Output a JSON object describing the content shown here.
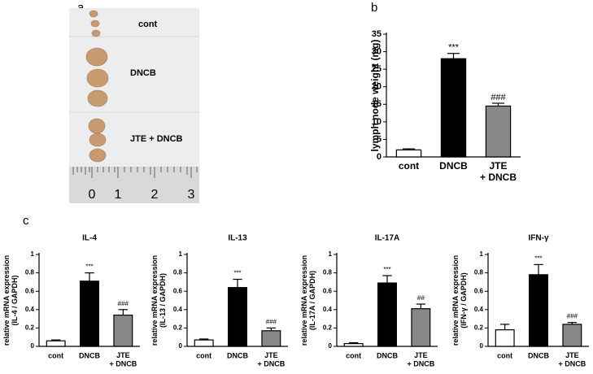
{
  "panels": {
    "a": "a",
    "b": "b",
    "c": "c"
  },
  "photo": {
    "labels": [
      "cont",
      "DNCB",
      "JTE + DNCB"
    ],
    "ruler": [
      0,
      1,
      2,
      3
    ]
  },
  "chart_data": [
    {
      "type": "bar",
      "ylabel": "lymph node weight (mg)",
      "categories": [
        "cont",
        "DNCB",
        "JTE\n+ DNCB"
      ],
      "values": [
        2,
        28,
        14.5
      ],
      "errors": [
        0.3,
        1.5,
        0.8
      ],
      "annotations": [
        null,
        "***",
        "###"
      ],
      "colors": [
        "#ffffff",
        "#000000",
        "#888888"
      ],
      "ylim": [
        0,
        35
      ],
      "yticks": [
        0,
        5,
        10,
        15,
        20,
        25,
        30,
        35
      ]
    },
    {
      "type": "bar",
      "title": "IL-4",
      "ylabel": "relative mRNA expression\n(IL-4 / GAPDH)",
      "categories": [
        "cont",
        "DNCB",
        "JTE\n+ DNCB"
      ],
      "values": [
        0.06,
        0.71,
        0.34
      ],
      "errors": [
        0.01,
        0.09,
        0.06
      ],
      "annotations": [
        null,
        "***",
        "###"
      ],
      "colors": [
        "#ffffff",
        "#000000",
        "#888888"
      ],
      "ylim": [
        0,
        1
      ],
      "yticks": [
        0,
        0.2,
        0.4,
        0.6,
        0.8,
        1
      ]
    },
    {
      "type": "bar",
      "title": "IL-13",
      "ylabel": "relative mRNA expression\n(IL-13 / GAPDH)",
      "categories": [
        "cont",
        "DNCB",
        "JTE\n+ DNCB"
      ],
      "values": [
        0.07,
        0.64,
        0.17
      ],
      "errors": [
        0.01,
        0.09,
        0.03
      ],
      "annotations": [
        null,
        "***",
        "###"
      ],
      "colors": [
        "#ffffff",
        "#000000",
        "#888888"
      ],
      "ylim": [
        0,
        1
      ],
      "yticks": [
        0,
        0.2,
        0.4,
        0.6,
        0.8,
        1
      ]
    },
    {
      "type": "bar",
      "title": "IL-17A",
      "ylabel": "relative mRNA expression\n(IL-17A / GAPDH)",
      "categories": [
        "cont",
        "DNCB",
        "JTE\n+ DNCB"
      ],
      "values": [
        0.03,
        0.69,
        0.41
      ],
      "errors": [
        0.01,
        0.08,
        0.05
      ],
      "annotations": [
        null,
        "***",
        "##"
      ],
      "colors": [
        "#ffffff",
        "#000000",
        "#888888"
      ],
      "ylim": [
        0,
        1
      ],
      "yticks": [
        0,
        0.2,
        0.4,
        0.6,
        0.8,
        1
      ]
    },
    {
      "type": "bar",
      "title": "IFN-γ",
      "ylabel": "relative mRNA expression\n(IFN-γ / GAPDH)",
      "categories": [
        "cont",
        "DNCB",
        "JTE\n+ DNCB"
      ],
      "values": [
        0.18,
        0.78,
        0.24
      ],
      "errors": [
        0.06,
        0.11,
        0.02
      ],
      "annotations": [
        null,
        "***",
        "###"
      ],
      "colors": [
        "#ffffff",
        "#000000",
        "#888888"
      ],
      "ylim": [
        0,
        1
      ],
      "yticks": [
        0,
        0.2,
        0.4,
        0.6,
        0.8,
        1
      ]
    }
  ]
}
